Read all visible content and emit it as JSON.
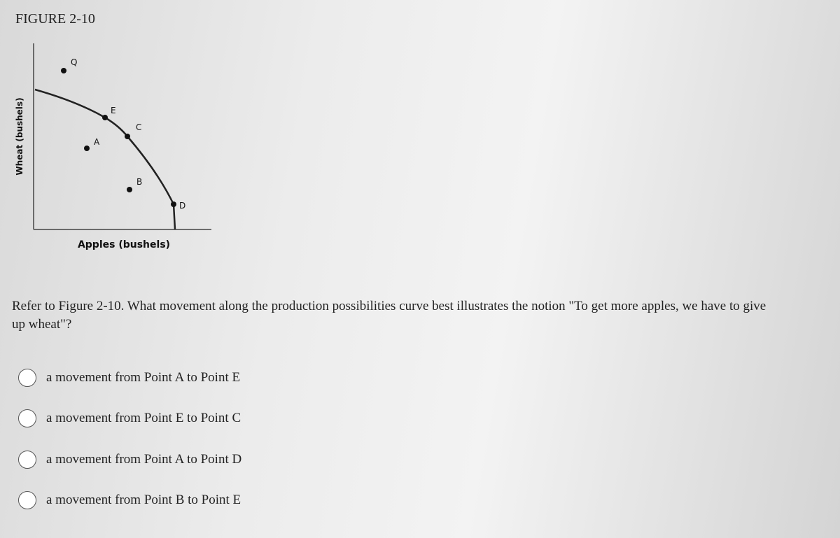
{
  "figure": {
    "title": "FIGURE 2-10",
    "y_axis_label": "Wheat (bushels)",
    "x_axis_label": "Apples (bushels)",
    "points": [
      {
        "label": "Q"
      },
      {
        "label": "E"
      },
      {
        "label": "C"
      },
      {
        "label": "A"
      },
      {
        "label": "B"
      },
      {
        "label": "D"
      }
    ]
  },
  "question": {
    "text": "Refer to Figure 2-10. What movement along the production possibilities curve best illustrates the notion \"To get more apples, we have to give up wheat\"?"
  },
  "options": [
    "a movement from Point A to Point E",
    "a movement from Point E to Point C",
    "a movement from Point A to Point D",
    "a movement from Point B to Point E"
  ]
}
